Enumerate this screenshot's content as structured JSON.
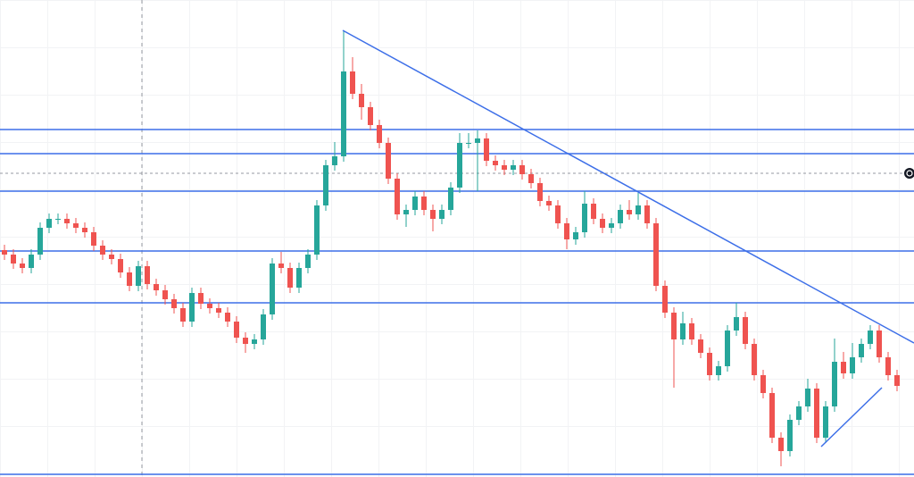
{
  "chart_data": {
    "type": "candlestick",
    "up_color": "#26a69a",
    "down_color": "#ef5350",
    "line_color": "#3d6fe8",
    "xlim": [
      -0.5,
      101.9
    ],
    "ylim": [
      0,
      534
    ],
    "grid": true,
    "candles": [
      [
        254,
        260,
        243,
        249
      ],
      [
        249,
        255,
        233,
        239
      ],
      [
        239,
        245,
        228,
        234
      ],
      [
        234,
        255,
        228,
        249
      ],
      [
        249,
        285,
        243,
        279
      ],
      [
        279,
        295,
        273,
        289
      ],
      [
        289,
        295,
        283,
        289
      ],
      [
        289,
        295,
        278,
        284
      ],
      [
        284,
        290,
        273,
        279
      ],
      [
        279,
        285,
        268,
        274
      ],
      [
        274,
        280,
        253,
        259
      ],
      [
        259,
        265,
        243,
        249
      ],
      [
        249,
        255,
        238,
        244
      ],
      [
        244,
        250,
        223,
        229
      ],
      [
        229,
        235,
        208,
        214
      ],
      [
        214,
        242,
        208,
        236
      ],
      [
        236,
        242,
        210,
        216
      ],
      [
        216,
        222,
        203,
        209
      ],
      [
        209,
        215,
        193,
        199
      ],
      [
        199,
        205,
        183,
        189
      ],
      [
        189,
        195,
        168,
        174
      ],
      [
        174,
        212,
        168,
        206
      ],
      [
        206,
        212,
        188,
        194
      ],
      [
        194,
        200,
        183,
        189
      ],
      [
        189,
        195,
        178,
        184
      ],
      [
        184,
        190,
        168,
        174
      ],
      [
        174,
        180,
        150,
        156
      ],
      [
        156,
        162,
        139,
        149
      ],
      [
        149,
        160,
        143,
        154
      ],
      [
        154,
        188,
        148,
        182
      ],
      [
        182,
        245,
        176,
        239
      ],
      [
        239,
        252,
        228,
        234
      ],
      [
        234,
        240,
        206,
        212
      ],
      [
        212,
        240,
        206,
        234
      ],
      [
        234,
        255,
        228,
        249
      ],
      [
        249,
        310,
        243,
        304
      ],
      [
        304,
        355,
        298,
        349
      ],
      [
        349,
        375,
        343,
        359
      ],
      [
        359,
        500,
        353,
        454
      ],
      [
        454,
        470,
        423,
        429
      ],
      [
        429,
        440,
        400,
        414
      ],
      [
        414,
        420,
        388,
        394
      ],
      [
        394,
        400,
        368,
        374
      ],
      [
        374,
        380,
        328,
        334
      ],
      [
        334,
        340,
        288,
        294
      ],
      [
        294,
        305,
        280,
        299
      ],
      [
        299,
        320,
        293,
        314
      ],
      [
        314,
        320,
        293,
        299
      ],
      [
        299,
        305,
        275,
        289
      ],
      [
        289,
        305,
        283,
        299
      ],
      [
        299,
        330,
        293,
        324
      ],
      [
        324,
        385,
        318,
        374
      ],
      [
        374,
        385,
        368,
        374
      ],
      [
        374,
        388,
        320,
        379
      ],
      [
        379,
        385,
        348,
        354
      ],
      [
        354,
        360,
        343,
        349
      ],
      [
        349,
        355,
        338,
        344
      ],
      [
        344,
        355,
        338,
        349
      ],
      [
        349,
        355,
        333,
        339
      ],
      [
        339,
        345,
        323,
        329
      ],
      [
        329,
        335,
        303,
        309
      ],
      [
        309,
        315,
        298,
        304
      ],
      [
        304,
        310,
        278,
        284
      ],
      [
        284,
        290,
        255,
        266
      ],
      [
        266,
        280,
        260,
        274
      ],
      [
        274,
        320,
        268,
        306
      ],
      [
        306,
        312,
        283,
        289
      ],
      [
        289,
        295,
        273,
        279
      ],
      [
        279,
        290,
        273,
        284
      ],
      [
        284,
        305,
        278,
        299
      ],
      [
        299,
        310,
        288,
        294
      ],
      [
        294,
        318,
        288,
        304
      ],
      [
        304,
        310,
        278,
        284
      ],
      [
        284,
        290,
        208,
        214
      ],
      [
        214,
        220,
        178,
        184
      ],
      [
        184,
        190,
        100,
        154
      ],
      [
        154,
        185,
        148,
        172
      ],
      [
        172,
        178,
        148,
        154
      ],
      [
        154,
        160,
        133,
        139
      ],
      [
        139,
        145,
        108,
        114
      ],
      [
        114,
        130,
        108,
        124
      ],
      [
        124,
        170,
        118,
        164
      ],
      [
        164,
        195,
        158,
        179
      ],
      [
        179,
        185,
        143,
        149
      ],
      [
        149,
        155,
        108,
        114
      ],
      [
        114,
        120,
        88,
        94
      ],
      [
        94,
        100,
        38,
        44
      ],
      [
        44,
        50,
        12,
        29
      ],
      [
        29,
        70,
        23,
        64
      ],
      [
        64,
        85,
        58,
        79
      ],
      [
        79,
        110,
        73,
        99
      ],
      [
        99,
        105,
        38,
        44
      ],
      [
        44,
        85,
        38,
        79
      ],
      [
        79,
        155,
        73,
        129
      ],
      [
        129,
        140,
        110,
        116
      ],
      [
        116,
        150,
        110,
        134
      ],
      [
        134,
        155,
        128,
        149
      ],
      [
        149,
        170,
        143,
        164
      ],
      [
        164,
        170,
        128,
        134
      ],
      [
        134,
        140,
        108,
        114
      ],
      [
        114,
        120,
        96,
        102
      ]
    ],
    "levels": [
      389,
      362,
      320,
      253,
      195,
      3
    ],
    "price_line": 340,
    "trendlines": [
      {
        "x": [
          37.9,
          101.9
        ],
        "y": [
          500,
          150
        ]
      },
      {
        "x": [
          91.5,
          98.3
        ],
        "y": [
          34,
          100
        ]
      }
    ]
  }
}
